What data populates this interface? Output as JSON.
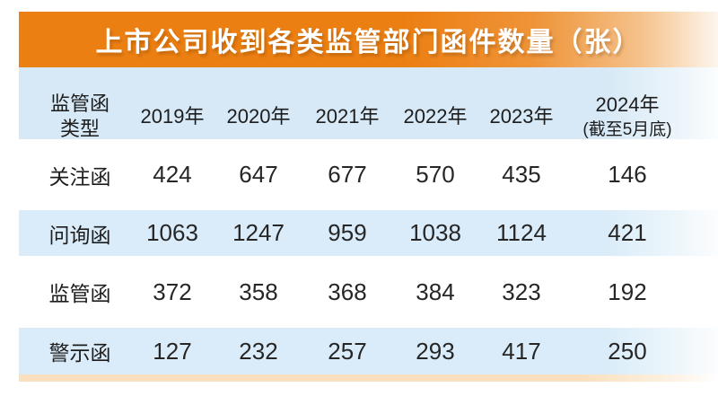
{
  "title": "上市公司收到各类监管部门函件数量（张）",
  "colors": {
    "banner_orange": "#ec7f12",
    "header_blue": "#d7e9f6",
    "zebra_blue": "#daecf9",
    "bottom_strip_peach": "#f9dfbd",
    "title_text": "#ffffff",
    "body_text": "#1d1d1d"
  },
  "table": {
    "type_header": "监管函\n类型",
    "year_headers": [
      "2019年",
      "2020年",
      "2021年",
      "2022年",
      "2023年"
    ],
    "year2024": {
      "line1": "2024年",
      "line2": "(截至5月底)"
    }
  },
  "chart_data": {
    "type": "table",
    "title": "上市公司收到各类监管部门函件数量（张）",
    "categories": [
      "2019年",
      "2020年",
      "2021年",
      "2022年",
      "2023年",
      "2024年(截至5月底)"
    ],
    "row_header_label": "监管函类型",
    "series": [
      {
        "name": "关注函",
        "values": [
          424,
          647,
          677,
          570,
          435,
          146
        ]
      },
      {
        "name": "问询函",
        "values": [
          1063,
          1247,
          959,
          1038,
          1124,
          421
        ]
      },
      {
        "name": "监管函",
        "values": [
          372,
          358,
          368,
          384,
          323,
          192
        ]
      },
      {
        "name": "警示函",
        "values": [
          127,
          232,
          257,
          293,
          417,
          250
        ]
      }
    ],
    "legend_position": "none",
    "grid": false
  }
}
